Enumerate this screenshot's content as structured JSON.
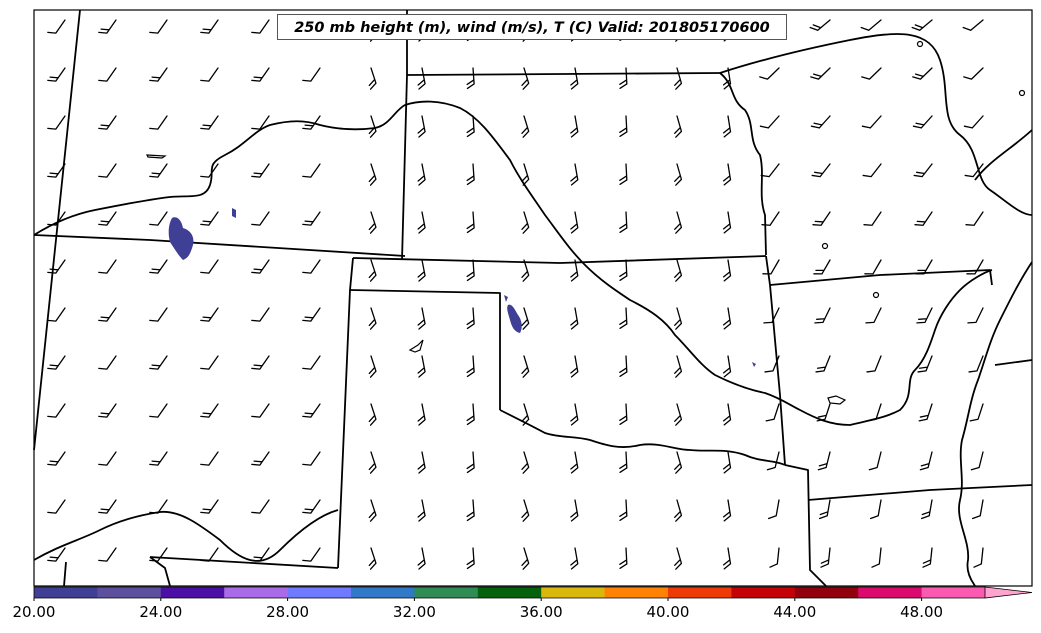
{
  "map": {
    "title": "250 mb height (m), wind (m/s), T (C) Valid: 201805170600"
  },
  "colorbar": {
    "tick_labels": [
      "20.00",
      "24.00",
      "28.00",
      "32.00",
      "36.00",
      "40.00",
      "44.00",
      "48.00"
    ],
    "colors": [
      "#3f3f96",
      "#5b4f9e",
      "#4b0fa5",
      "#aa6be9",
      "#6f7afe",
      "#2f79c8",
      "#2f8c55",
      "#04610c",
      "#dab70b",
      "#fe8204",
      "#ee3a06",
      "#c50307",
      "#90000d",
      "#db0a6f",
      "#fa5ab0",
      "#ffa3cf"
    ]
  },
  "legend_colors": {
    "contour_color": "#3f3f96",
    "boundary_color": "#000000"
  }
}
